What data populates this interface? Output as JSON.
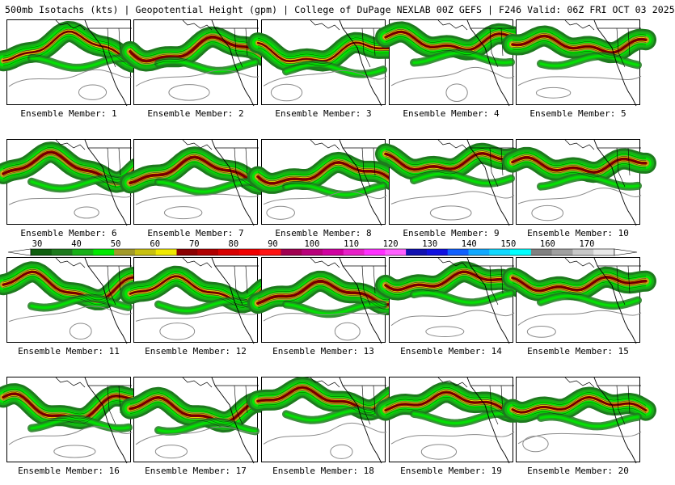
{
  "header": {
    "title": "500mb Isotachs (kts) | Geopotential Height (gpm) | College of DuPage NEXLAB   00Z GEFS | F246 Valid: 06Z FRI OCT 03 2025"
  },
  "colors": {
    "map_lines": "#000000",
    "height_contour": "#8a8a8a",
    "isotach_levels": [
      {
        "min": 30,
        "color": "#1e7a1e"
      },
      {
        "min": 40,
        "color": "#18b018"
      },
      {
        "min": 50,
        "color": "#00e800"
      },
      {
        "min": 60,
        "color": "#a29a2a"
      },
      {
        "min": 70,
        "color": "#f0e800"
      },
      {
        "min": 80,
        "color": "#8b0000"
      }
    ]
  },
  "colorbar": {
    "tick_labels": [
      "30",
      "40",
      "50",
      "60",
      "70",
      "80",
      "90",
      "100",
      "110",
      "120",
      "130",
      "140",
      "150",
      "160",
      "170"
    ],
    "segments": [
      "#0f5f0f",
      "#1e7a1e",
      "#18b018",
      "#00e800",
      "#a29a2a",
      "#c8c010",
      "#f0e800",
      "#8b0000",
      "#b00000",
      "#d80000",
      "#f00000",
      "#ff1414",
      "#a00050",
      "#b8007a",
      "#d000a0",
      "#e820c8",
      "#ff30ff",
      "#ff60ff",
      "#1010b0",
      "#1010e0",
      "#1060ff",
      "#10a8ff",
      "#10d8ff",
      "#00ffff",
      "#808080",
      "#a0a0a0",
      "#c8c8c8",
      "#e8e8e8"
    ]
  },
  "members": [
    {
      "label": "Ensemble Member: 1",
      "jet_strength": 0.55
    },
    {
      "label": "Ensemble Member: 2",
      "jet_strength": 0.8
    },
    {
      "label": "Ensemble Member: 3",
      "jet_strength": 0.55
    },
    {
      "label": "Ensemble Member: 4",
      "jet_strength": 0.7
    },
    {
      "label": "Ensemble Member: 5",
      "jet_strength": 0.75
    },
    {
      "label": "Ensemble Member: 6",
      "jet_strength": 0.8
    },
    {
      "label": "Ensemble Member: 7",
      "jet_strength": 0.8
    },
    {
      "label": "Ensemble Member: 8",
      "jet_strength": 0.75
    },
    {
      "label": "Ensemble Member: 9",
      "jet_strength": 0.75
    },
    {
      "label": "Ensemble Member: 10",
      "jet_strength": 0.75
    },
    {
      "label": "Ensemble Member: 11",
      "jet_strength": 0.7
    },
    {
      "label": "Ensemble Member: 12",
      "jet_strength": 0.6
    },
    {
      "label": "Ensemble Member: 13",
      "jet_strength": 0.8
    },
    {
      "label": "Ensemble Member: 14",
      "jet_strength": 0.75
    },
    {
      "label": "Ensemble Member: 15",
      "jet_strength": 0.75
    },
    {
      "label": "Ensemble Member: 16",
      "jet_strength": 0.75
    },
    {
      "label": "Ensemble Member: 17",
      "jet_strength": 0.75
    },
    {
      "label": "Ensemble Member: 18",
      "jet_strength": 0.75
    },
    {
      "label": "Ensemble Member: 19",
      "jet_strength": 0.7
    },
    {
      "label": "Ensemble Member: 20",
      "jet_strength": 0.65
    }
  ]
}
